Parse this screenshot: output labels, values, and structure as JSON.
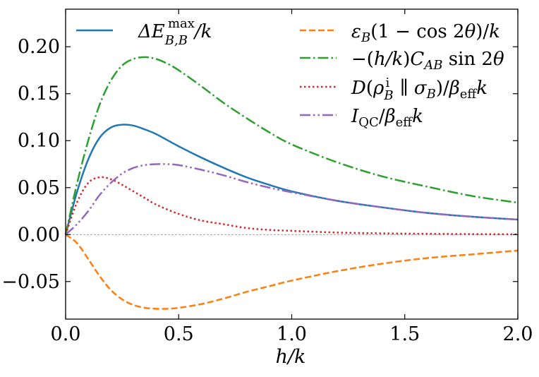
{
  "chart_data": {
    "type": "line",
    "xlabel": "h/k",
    "xlim": [
      0.0,
      2.0
    ],
    "ylim": [
      -0.09,
      0.24
    ],
    "x_ticks": [
      0.0,
      0.5,
      1.0,
      1.5,
      2.0
    ],
    "x_tick_labels": [
      "0.0",
      "0.5",
      "1.0",
      "1.5",
      "2.0"
    ],
    "y_ticks": [
      -0.05,
      0.0,
      0.05,
      0.1,
      0.15,
      0.2
    ],
    "y_tick_labels": [
      "−0.05",
      "0.00",
      "0.05",
      "0.10",
      "0.15",
      "0.20"
    ],
    "grid": false,
    "legend_placement": "top (two columns)",
    "reference_line": {
      "y": 0.0,
      "color": "#808080",
      "style": "dashed thin"
    },
    "series": [
      {
        "name": "ΔE_{B,B}^{max}/k",
        "color": "#1f77b4",
        "linestyle": "solid",
        "x": [
          0.0,
          0.05,
          0.1,
          0.15,
          0.2,
          0.25,
          0.3,
          0.35,
          0.4,
          0.5,
          0.6,
          0.7,
          0.8,
          0.9,
          1.0,
          1.2,
          1.4,
          1.6,
          1.8,
          2.0
        ],
        "y": [
          0.0,
          0.045,
          0.08,
          0.103,
          0.114,
          0.117,
          0.116,
          0.112,
          0.107,
          0.094,
          0.082,
          0.071,
          0.061,
          0.053,
          0.046,
          0.036,
          0.029,
          0.023,
          0.019,
          0.016
        ]
      },
      {
        "name": "ε_B(1 − cos 2θ)/k",
        "color": "#ff7f0e",
        "linestyle": "dashed",
        "x": [
          0.0,
          0.05,
          0.1,
          0.15,
          0.2,
          0.25,
          0.3,
          0.35,
          0.4,
          0.45,
          0.5,
          0.6,
          0.7,
          0.8,
          0.9,
          1.0,
          1.2,
          1.4,
          1.6,
          1.8,
          2.0
        ],
        "y": [
          0.0,
          -0.009,
          -0.026,
          -0.044,
          -0.059,
          -0.069,
          -0.075,
          -0.078,
          -0.079,
          -0.079,
          -0.078,
          -0.074,
          -0.068,
          -0.061,
          -0.055,
          -0.049,
          -0.039,
          -0.031,
          -0.025,
          -0.021,
          -0.017
        ]
      },
      {
        "name": "−(h/k)C_AB sin 2θ",
        "color": "#2ca02c",
        "linestyle": "dashdot",
        "x": [
          0.0,
          0.05,
          0.1,
          0.15,
          0.2,
          0.25,
          0.3,
          0.35,
          0.4,
          0.45,
          0.5,
          0.6,
          0.7,
          0.8,
          0.9,
          1.0,
          1.2,
          1.4,
          1.6,
          1.8,
          2.0
        ],
        "y": [
          0.0,
          0.054,
          0.1,
          0.138,
          0.164,
          0.18,
          0.187,
          0.189,
          0.187,
          0.182,
          0.175,
          0.158,
          0.14,
          0.124,
          0.109,
          0.096,
          0.077,
          0.062,
          0.051,
          0.041,
          0.034
        ]
      },
      {
        "name": "D(ρ_B^i ‖ σ_B)/β_eff k",
        "color": "#d62728",
        "linestyle": "dotted",
        "x": [
          0.0,
          0.05,
          0.1,
          0.15,
          0.2,
          0.25,
          0.3,
          0.35,
          0.4,
          0.5,
          0.6,
          0.7,
          0.8,
          0.9,
          1.0,
          1.2,
          1.4,
          1.6,
          1.8,
          2.0
        ],
        "y": [
          0.0,
          0.034,
          0.055,
          0.061,
          0.059,
          0.053,
          0.046,
          0.039,
          0.032,
          0.022,
          0.015,
          0.011,
          0.007,
          0.005,
          0.004,
          0.0022,
          0.0013,
          0.0008,
          0.0005,
          0.0003
        ]
      },
      {
        "name": "I_QC/β_eff k",
        "color": "#9467bd",
        "linestyle": "dashdotdot",
        "x": [
          0.0,
          0.05,
          0.1,
          0.15,
          0.2,
          0.25,
          0.3,
          0.35,
          0.4,
          0.45,
          0.5,
          0.6,
          0.7,
          0.8,
          0.9,
          1.0,
          1.2,
          1.4,
          1.6,
          1.8,
          2.0
        ],
        "y": [
          0.0,
          0.011,
          0.025,
          0.042,
          0.055,
          0.065,
          0.071,
          0.074,
          0.075,
          0.075,
          0.074,
          0.069,
          0.063,
          0.056,
          0.05,
          0.045,
          0.036,
          0.029,
          0.023,
          0.019,
          0.016
        ]
      }
    ]
  }
}
